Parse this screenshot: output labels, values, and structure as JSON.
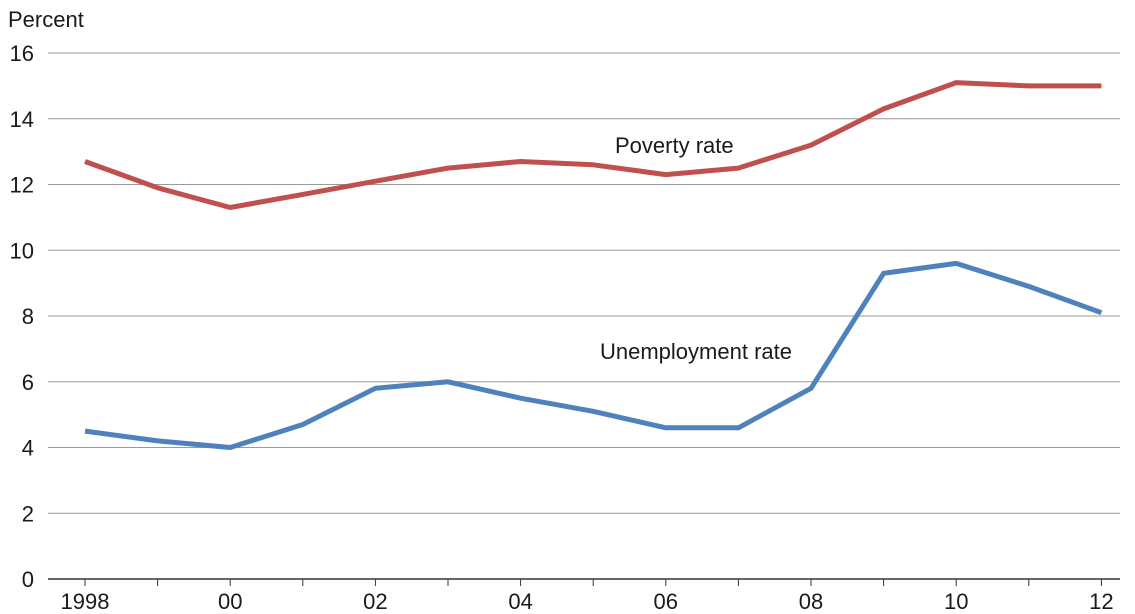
{
  "chart_data": {
    "type": "line",
    "ylabel": "Percent",
    "ylim": [
      0,
      16
    ],
    "y_ticks": [
      0,
      2,
      4,
      6,
      8,
      10,
      12,
      14,
      16
    ],
    "x": [
      1998,
      1999,
      2000,
      2001,
      2002,
      2003,
      2004,
      2005,
      2006,
      2007,
      2008,
      2009,
      2010,
      2011,
      2012
    ],
    "x_tick_labels": [
      {
        "x": 1998,
        "label": "1998"
      },
      {
        "x": 2000,
        "label": "00"
      },
      {
        "x": 2002,
        "label": "02"
      },
      {
        "x": 2004,
        "label": "04"
      },
      {
        "x": 2006,
        "label": "06"
      },
      {
        "x": 2008,
        "label": "08"
      },
      {
        "x": 2010,
        "label": "10"
      },
      {
        "x": 2012,
        "label": "12"
      }
    ],
    "grid": true,
    "series": [
      {
        "name": "Poverty rate",
        "color": "#c0504d",
        "values": [
          12.7,
          11.9,
          11.3,
          11.7,
          12.1,
          12.5,
          12.7,
          12.6,
          12.3,
          12.5,
          13.2,
          14.3,
          15.1,
          15.0,
          15.0
        ]
      },
      {
        "name": "Unemployment rate",
        "color": "#4f81bd",
        "values": [
          4.5,
          4.2,
          4.0,
          4.7,
          5.8,
          6.0,
          5.5,
          5.1,
          4.6,
          4.6,
          5.8,
          9.3,
          9.6,
          8.9,
          8.1
        ]
      }
    ]
  }
}
